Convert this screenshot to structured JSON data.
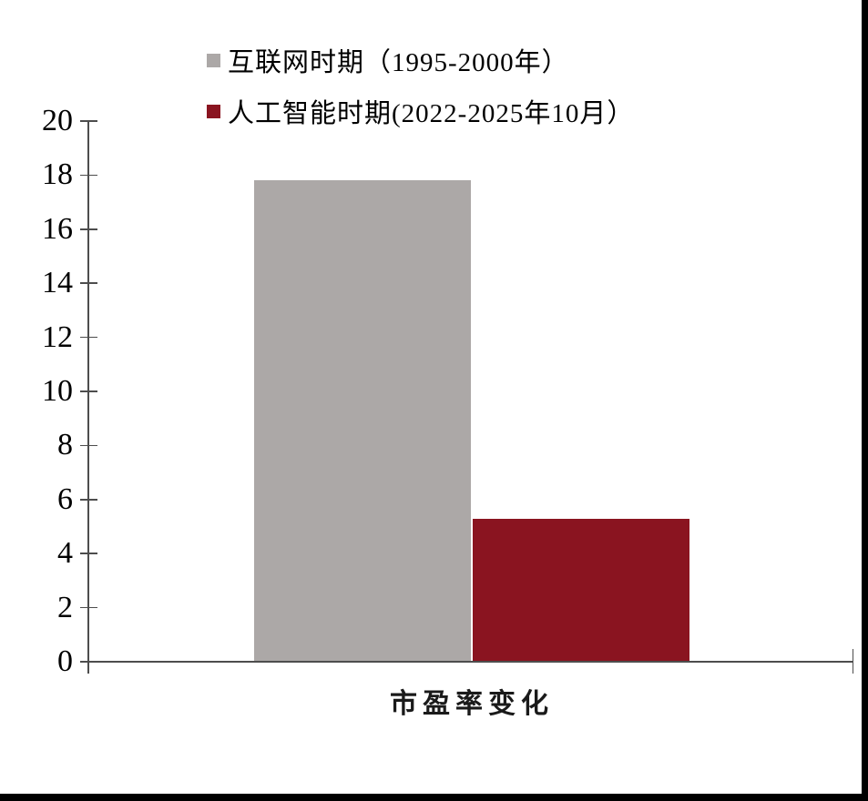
{
  "chart_data": {
    "type": "bar",
    "title": "",
    "categories": [
      "市盈率变化"
    ],
    "series": [
      {
        "name": "互联网时期（1995-2000年）",
        "values": [
          17.8
        ],
        "color": "#ACA8A7"
      },
      {
        "name": "人工智能时期(2022-2025年10月）",
        "values": [
          5.3
        ],
        "color": "#8A1420"
      }
    ],
    "xlabel": "",
    "ylabel": "",
    "ylim": [
      0,
      20
    ],
    "ytick_step": 2,
    "grid": false,
    "legend_position": "top-left",
    "axis_color": "#4D4D4D",
    "tick_label_color": "#000000"
  },
  "frame": {
    "right_bar_color": "#000000",
    "bottom_bar_color": "#000000"
  }
}
